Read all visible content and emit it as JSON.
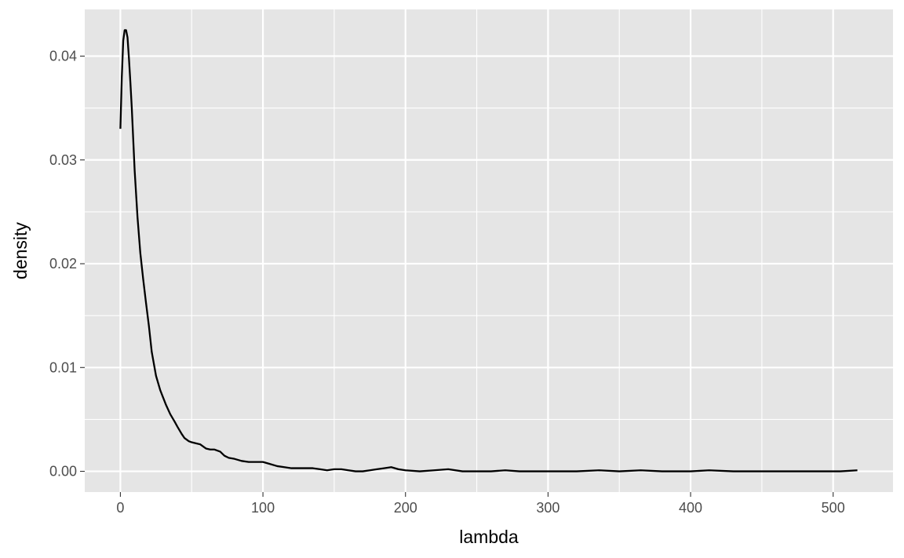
{
  "chart_data": {
    "type": "line",
    "title": "",
    "xlabel": "lambda",
    "ylabel": "density",
    "xlim": [
      -25,
      542
    ],
    "ylim": [
      -0.002,
      0.0445
    ],
    "x_ticks": [
      0,
      100,
      200,
      300,
      400,
      500
    ],
    "x_tick_labels": [
      "0",
      "100",
      "200",
      "300",
      "400",
      "500"
    ],
    "x_minor_ticks": [
      50,
      150,
      250,
      350,
      450
    ],
    "y_ticks": [
      0,
      0.01,
      0.02,
      0.03,
      0.04
    ],
    "y_tick_labels": [
      "0.00",
      "0.01",
      "0.02",
      "0.03",
      "0.04"
    ],
    "y_minor_ticks": [
      0.005,
      0.015,
      0.025,
      0.035
    ],
    "grid": true,
    "legend": "none",
    "colors": {
      "panel": "#e5e5e5",
      "grid": "#ffffff",
      "line": "#000000",
      "tick": "#333333",
      "tick_label": "#4d4d4d"
    },
    "series": [
      {
        "x": [
          0,
          1,
          2,
          3,
          4,
          5,
          6,
          7,
          8,
          9,
          10,
          12,
          14,
          16,
          18,
          20,
          22,
          25,
          28,
          30,
          32,
          35,
          38,
          40,
          43,
          45,
          48,
          50,
          53,
          56,
          58,
          60,
          63,
          66,
          70,
          73,
          76,
          80,
          85,
          90,
          95,
          100,
          105,
          110,
          115,
          120,
          125,
          130,
          135,
          140,
          145,
          150,
          155,
          160,
          165,
          170,
          175,
          180,
          185,
          190,
          195,
          200,
          210,
          220,
          230,
          240,
          250,
          260,
          270,
          280,
          300,
          320,
          336,
          350,
          365,
          380,
          400,
          413,
          430,
          450,
          480,
          505,
          517
        ],
        "y": [
          0.033,
          0.038,
          0.0415,
          0.0425,
          0.0425,
          0.0418,
          0.0398,
          0.0375,
          0.035,
          0.032,
          0.029,
          0.0245,
          0.021,
          0.0185,
          0.0162,
          0.014,
          0.0115,
          0.0092,
          0.0078,
          0.0071,
          0.0064,
          0.0055,
          0.0048,
          0.0043,
          0.0036,
          0.0032,
          0.0029,
          0.0028,
          0.0027,
          0.0026,
          0.0024,
          0.0022,
          0.0021,
          0.0021,
          0.0019,
          0.0015,
          0.0013,
          0.0012,
          0.001,
          0.0009,
          0.0009,
          0.0009,
          0.0007,
          0.0005,
          0.0004,
          0.0003,
          0.0003,
          0.0003,
          0.0003,
          0.0002,
          0.0001,
          0.0002,
          0.0002,
          0.0001,
          0.0,
          0.0,
          0.0001,
          0.0002,
          0.0003,
          0.0004,
          0.0002,
          0.0001,
          0.0,
          0.0001,
          0.0002,
          0.0,
          0.0,
          0.0,
          0.0001,
          0.0,
          0.0,
          0.0,
          0.0001,
          0.0,
          0.0001,
          0.0,
          0.0,
          0.0001,
          0.0,
          0.0,
          0.0,
          0.0,
          0.0001
        ]
      }
    ]
  }
}
